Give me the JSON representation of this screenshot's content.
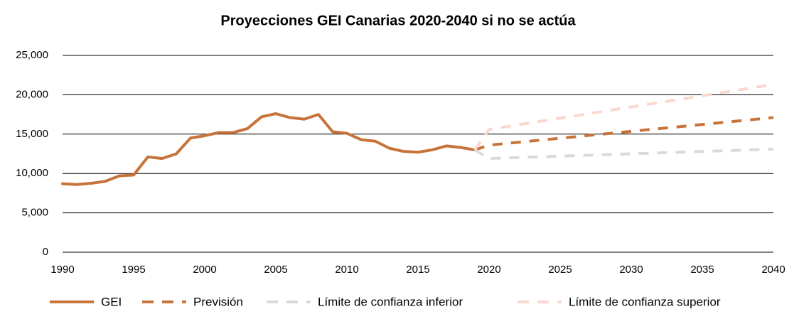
{
  "chart_data": {
    "type": "line",
    "title": "Proyecciones GEI Canarias 2020-2040 si no se actúa",
    "x": [
      1990,
      1991,
      1992,
      1993,
      1994,
      1995,
      1996,
      1997,
      1998,
      1999,
      2000,
      2001,
      2002,
      2003,
      2004,
      2005,
      2006,
      2007,
      2008,
      2009,
      2010,
      2011,
      2012,
      2013,
      2014,
      2015,
      2016,
      2017,
      2018,
      2019,
      2020,
      2021,
      2022,
      2023,
      2024,
      2025,
      2026,
      2027,
      2028,
      2029,
      2030,
      2031,
      2032,
      2033,
      2034,
      2035,
      2036,
      2037,
      2038,
      2039,
      2040
    ],
    "series": [
      {
        "name": "GEI",
        "color": "#c8733a",
        "dash": false,
        "values": [
          8700,
          8600,
          8750,
          9000,
          9700,
          9800,
          12100,
          11900,
          12500,
          14500,
          14800,
          15200,
          15200,
          15700,
          17200,
          17600,
          17100,
          16900,
          17500,
          15300,
          15100,
          14300,
          14100,
          13200,
          12800,
          12700,
          13000,
          13500,
          13300,
          13000,
          null,
          null,
          null,
          null,
          null,
          null,
          null,
          null,
          null,
          null,
          null,
          null,
          null,
          null,
          null,
          null,
          null,
          null,
          null,
          null,
          null
        ]
      },
      {
        "name": "Previsión",
        "color": "#c8733a",
        "dash": true,
        "values": [
          null,
          null,
          null,
          null,
          null,
          null,
          null,
          null,
          null,
          null,
          null,
          null,
          null,
          null,
          null,
          null,
          null,
          null,
          null,
          null,
          null,
          null,
          null,
          null,
          null,
          null,
          null,
          null,
          null,
          13000,
          13600,
          13780,
          13950,
          14130,
          14300,
          14480,
          14650,
          14830,
          15000,
          15180,
          15350,
          15530,
          15700,
          15880,
          16050,
          16230,
          16400,
          16580,
          16750,
          16930,
          17100
        ]
      },
      {
        "name": "Límite de confianza inferior",
        "color": "#d9d9d9",
        "dash": true,
        "values": [
          null,
          null,
          null,
          null,
          null,
          null,
          null,
          null,
          null,
          null,
          null,
          null,
          null,
          null,
          null,
          null,
          null,
          null,
          null,
          null,
          null,
          null,
          null,
          null,
          null,
          null,
          null,
          null,
          null,
          13000,
          11900,
          11960,
          12020,
          12080,
          12140,
          12200,
          12260,
          12320,
          12380,
          12440,
          12500,
          12560,
          12620,
          12680,
          12740,
          12800,
          12860,
          12920,
          12980,
          13040,
          13100
        ]
      },
      {
        "name": "Límite de confianza superior",
        "color": "#f9d8d0",
        "dash": true,
        "values": [
          null,
          null,
          null,
          null,
          null,
          null,
          null,
          null,
          null,
          null,
          null,
          null,
          null,
          null,
          null,
          null,
          null,
          null,
          null,
          null,
          null,
          null,
          null,
          null,
          null,
          null,
          null,
          null,
          null,
          13000,
          15600,
          15890,
          16170,
          16460,
          16740,
          17030,
          17310,
          17600,
          17880,
          18170,
          18450,
          18740,
          19020,
          19310,
          19590,
          19880,
          20160,
          20450,
          20730,
          21020,
          21300
        ]
      }
    ],
    "xlim": [
      1990,
      2040
    ],
    "xticks": [
      1990,
      1995,
      2000,
      2005,
      2010,
      2015,
      2020,
      2025,
      2030,
      2035,
      2040
    ],
    "ylim": [
      0,
      25000
    ],
    "yticks": [
      0,
      {
        "value": 5000,
        "label": "5,000"
      },
      {
        "value": 10000,
        "label": "10,000"
      },
      {
        "value": 15000,
        "label": "15,000"
      },
      {
        "value": 20000,
        "label": "20,000"
      },
      {
        "value": 25000,
        "label": "25,000"
      }
    ],
    "grid": true,
    "legend": "bottom"
  }
}
